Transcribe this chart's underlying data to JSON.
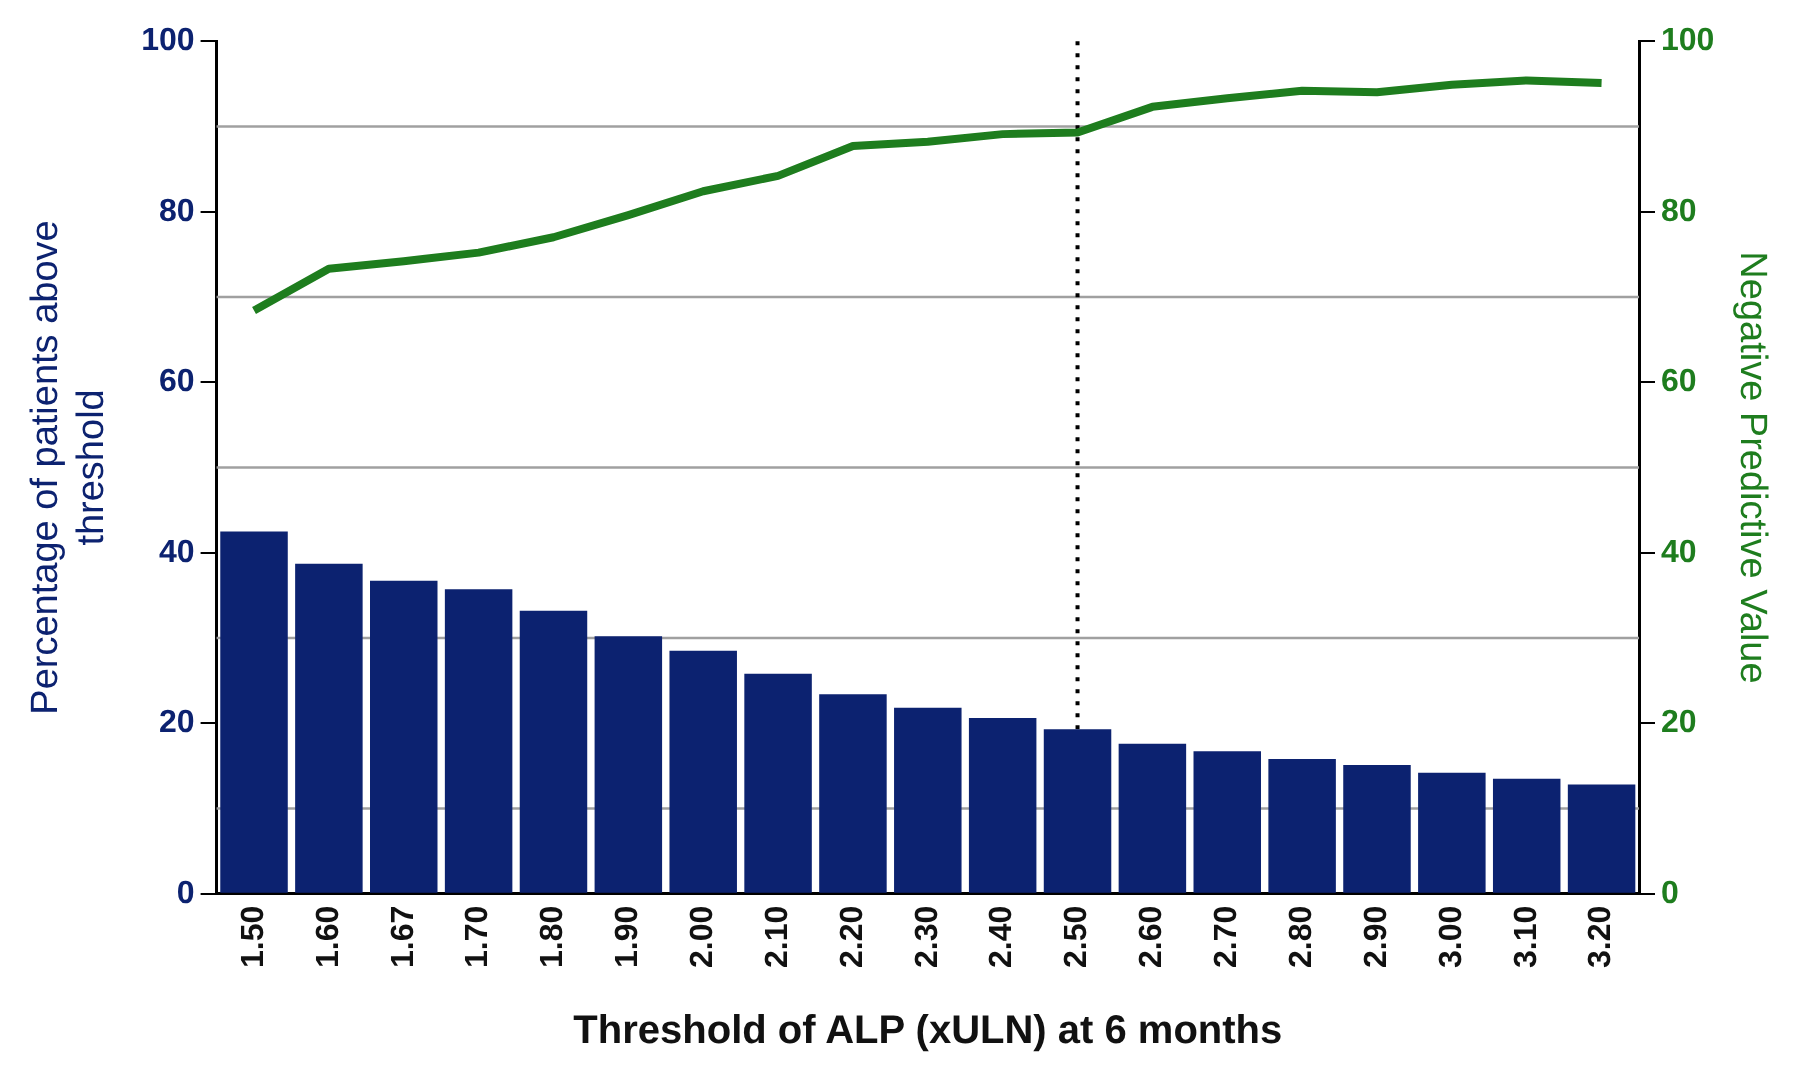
{
  "chart_data": {
    "type": "bar",
    "xlabel": "Threshold of ALP (xULN) at 6 months",
    "ylabel": "Percentage of patients above threshold",
    "y2label": "Negative Predictive Value",
    "categories": [
      "1.50",
      "1.60",
      "1.67",
      "1.70",
      "1.80",
      "1.90",
      "2.00",
      "2.10",
      "2.20",
      "2.30",
      "2.40",
      "2.50",
      "2.60",
      "2.70",
      "2.80",
      "2.90",
      "3.00",
      "3.10",
      "3.20"
    ],
    "series": [
      {
        "color": "#0c2270",
        "values": [
          42.5,
          38.7,
          36.7,
          35.7,
          33.2,
          30.2,
          28.5,
          25.8,
          23.4,
          21.8,
          20.6,
          19.3,
          17.6,
          16.7,
          15.8,
          15.1,
          14.2,
          13.5,
          12.8
        ]
      },
      {
        "type": "line",
        "axis": "y2",
        "color": "#1e7d1e",
        "values": [
          68.4,
          73.3,
          74.2,
          75.2,
          77.0,
          79.6,
          82.4,
          84.2,
          87.7,
          88.2,
          89.1,
          89.3,
          92.3,
          93.3,
          94.2,
          94.0,
          94.9,
          95.4,
          95.1
        ]
      }
    ],
    "ylim": [
      0,
      100
    ],
    "yticks": [
      0,
      20,
      40,
      60,
      80,
      100
    ],
    "y2lim": [
      0,
      100
    ],
    "y2ticks": [
      0,
      20,
      40,
      60,
      80,
      100
    ],
    "ref_lines": [
      {
        "axis": "y",
        "value": 10,
        "color": "#a0a0a0",
        "line_style": "solid"
      },
      {
        "axis": "y",
        "value": 30,
        "color": "#a0a0a0",
        "line_style": "solid"
      },
      {
        "axis": "y",
        "value": 50,
        "color": "#a0a0a0",
        "line_style": "solid"
      },
      {
        "axis": "y",
        "value": 70,
        "color": "#a0a0a0",
        "line_style": "solid"
      },
      {
        "axis": "y",
        "value": 90,
        "color": "#a0a0a0",
        "line_style": "solid"
      },
      {
        "axis": "x",
        "value": "2.50",
        "color": "#000000",
        "line_style": "dotted"
      }
    ],
    "grid": false,
    "legend": false,
    "marker": "none"
  }
}
